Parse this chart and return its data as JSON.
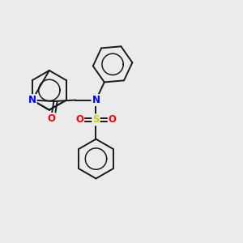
{
  "bg_color": "#ebebeb",
  "bond_color": "#1a1a1a",
  "bond_width": 1.4,
  "atom_colors": {
    "N": "#0000ff",
    "O": "#ff0000",
    "S": "#cccc00"
  },
  "font_size_atoms": 8.5
}
